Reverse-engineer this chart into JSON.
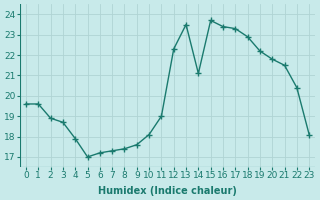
{
  "x": [
    0,
    1,
    2,
    3,
    4,
    5,
    6,
    7,
    8,
    9,
    10,
    11,
    12,
    13,
    14,
    15,
    16,
    17,
    18,
    19,
    20,
    21,
    22,
    23
  ],
  "y": [
    19.6,
    19.6,
    18.9,
    18.7,
    17.9,
    17.0,
    17.2,
    17.3,
    17.4,
    17.6,
    18.1,
    19.0,
    22.3,
    23.5,
    21.1,
    23.7,
    23.4,
    23.3,
    22.9,
    22.2,
    21.8,
    21.5,
    20.4,
    18.1
  ],
  "line_color": "#1a7a6e",
  "marker": "+",
  "markersize": 4,
  "linewidth": 1.0,
  "markeredgewidth": 1.0,
  "xlabel": "Humidex (Indice chaleur)",
  "ylim": [
    16.5,
    24.5
  ],
  "yticks": [
    17,
    18,
    19,
    20,
    21,
    22,
    23,
    24
  ],
  "bg_color": "#c8eaea",
  "grid_color": "#b0d4d4",
  "label_fontsize": 7,
  "tick_fontsize": 6.5
}
